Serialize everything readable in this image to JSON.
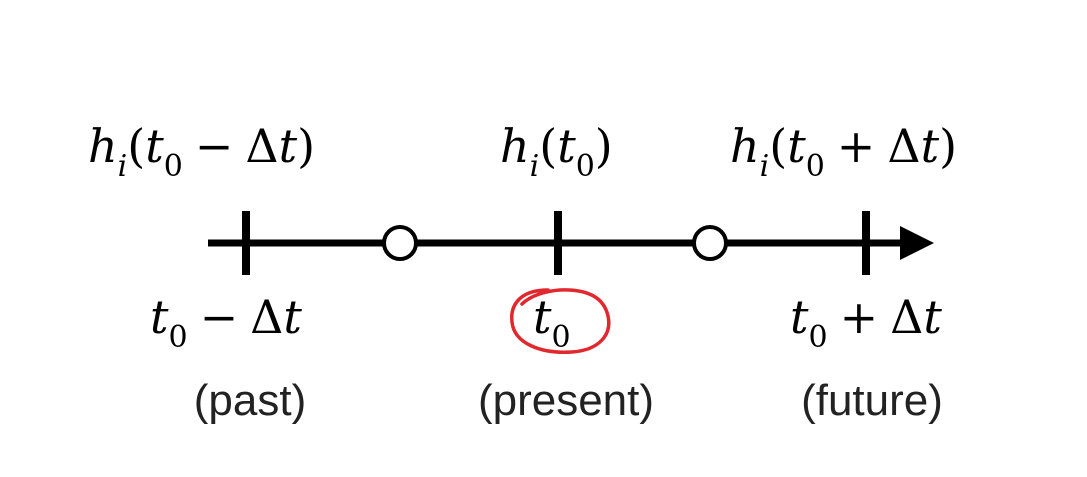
{
  "timeline": {
    "points": [
      {
        "func_label": {
          "name": "h",
          "sub": "i",
          "open": "(",
          "t": "t",
          "t_sub": "0",
          "op": "−",
          "delta": "Δ",
          "dt": "t",
          "close": ")"
        },
        "time_label": {
          "t": "t",
          "t_sub": "0",
          "op": "−",
          "delta": "Δ",
          "dt": "t"
        },
        "caption": "(past)"
      },
      {
        "func_label": {
          "name": "h",
          "sub": "i",
          "open": "(",
          "t": "t",
          "t_sub": "0",
          "close": ")"
        },
        "time_label": {
          "t": "t",
          "t_sub": "0"
        },
        "caption": "(present)",
        "highlighted": true
      },
      {
        "func_label": {
          "name": "h",
          "sub": "i",
          "open": "(",
          "t": "t",
          "t_sub": "0",
          "op": "+",
          "delta": "Δ",
          "dt": "t",
          "close": ")"
        },
        "time_label": {
          "t": "t",
          "t_sub": "0",
          "op": "+",
          "delta": "Δ",
          "dt": "t"
        },
        "caption": "(future)"
      }
    ]
  },
  "colors": {
    "line": "#000000",
    "highlight": "#e0282e",
    "text": "#000000",
    "caption": "#222222"
  }
}
